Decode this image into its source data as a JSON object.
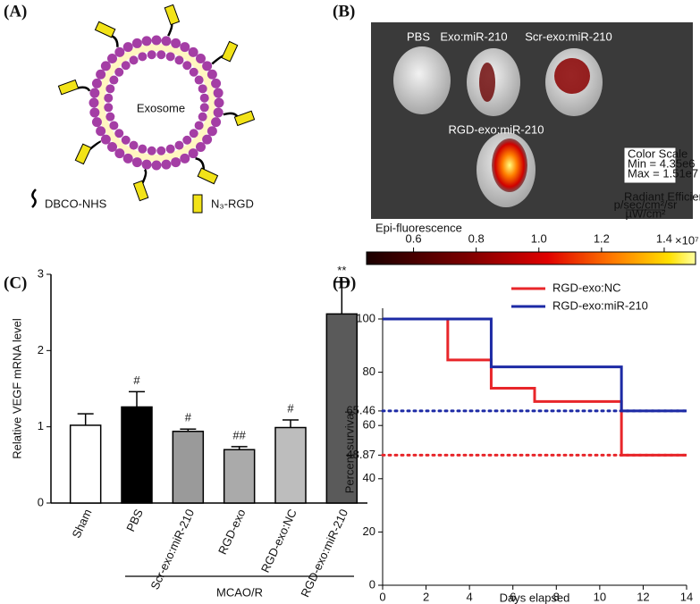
{
  "panels": {
    "a": "(A)",
    "b": "(B)",
    "c": "(C)",
    "d": "(D)"
  },
  "exosome": {
    "label": "Exosome",
    "legend": [
      "DBCO-NHS",
      "N₃-RGD"
    ]
  },
  "imaging": {
    "groups": [
      "PBS",
      "Exo:miR-210",
      "Scr-exo:miR-210",
      "RGD-exo:miR-210"
    ],
    "color_scale": {
      "title": "Color Scale",
      "min": "Min = 4.35e6",
      "max": "Max = 1.51e7"
    },
    "units_title": "Radiant Efficiency",
    "units_num": "p/sec/cm²/sr",
    "units_den": "µW/cm²",
    "colorbar": {
      "label": "Epi-fluorescence",
      "lim": [
        0.45,
        1.5
      ],
      "ticks": [
        0.6,
        0.8,
        {
          "value": 1,
          "label": "1.0"
        },
        1.2,
        1.4
      ],
      "multiplier": "×10⁷"
    }
  },
  "chart_data": [
    {
      "type": "bar",
      "ylabel": "Relative VEGF mRNA level",
      "categories": [
        "Sham",
        "PBS",
        "Scr-exo:miR-210",
        "RGD-exo",
        "RGD-exo:NC",
        "RGD-exo:miR-210"
      ],
      "values": [
        1.02,
        1.26,
        0.94,
        0.7,
        0.99,
        2.48
      ],
      "errors": [
        0.15,
        0.2,
        0.03,
        0.04,
        0.1,
        0.42
      ],
      "colors": [
        "#ffffff",
        "#000000",
        "#9a9a9a",
        "#aaaaaa",
        "#bdbdbd",
        "#5a5a5a"
      ],
      "annotations": [
        null,
        "#",
        "#",
        "##",
        "#",
        "**"
      ],
      "group_label": "MCAO/R",
      "ylim": [
        0,
        3
      ],
      "yticks": [
        0,
        1,
        2,
        3
      ]
    },
    {
      "type": "line",
      "xlabel": "Days elapsed",
      "ylabel": "Percent survival",
      "series": [
        {
          "name": "RGD-exo:NC",
          "color": "#e8262a",
          "x": [
            0,
            3,
            3,
            5,
            5,
            7,
            7,
            11,
            11,
            14
          ],
          "values": [
            100,
            100,
            84.6,
            84.6,
            74,
            74,
            69,
            69,
            48.87,
            48.87
          ]
        },
        {
          "name": "RGD-exo:miR-210",
          "color": "#1c2aa5",
          "x": [
            0,
            5,
            5,
            11,
            11,
            14
          ],
          "values": [
            100,
            100,
            82,
            82,
            65.46,
            65.46
          ]
        }
      ],
      "reference_lines": [
        {
          "value": 65.46,
          "color": "#1c2aa5"
        },
        {
          "value": 48.87,
          "color": "#e8262a"
        }
      ],
      "xlim": [
        0,
        14
      ],
      "xticks": [
        0,
        2,
        4,
        6,
        8,
        10,
        12,
        14
      ],
      "ylim": [
        0,
        100
      ],
      "yticks": [
        0,
        20,
        40,
        48.87,
        60,
        65.46,
        80,
        100
      ],
      "legend": "top-right"
    }
  ]
}
